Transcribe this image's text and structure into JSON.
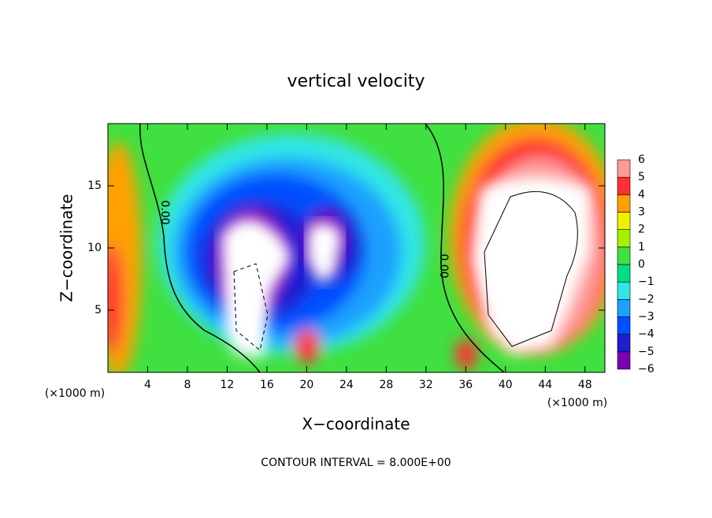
{
  "chart_data": {
    "type": "contour",
    "title": "vertical velocity",
    "xlabel": "X−coordinate",
    "ylabel": "Z−coordinate",
    "x_unit_label": "(×1000 m)",
    "footer": "CONTOUR INTERVAL = 8.000E+00",
    "contour_labels": [
      "0.00",
      "0.00"
    ],
    "xlim": [
      0,
      50
    ],
    "ylim": [
      0,
      20
    ],
    "xticks": [
      4,
      8,
      12,
      16,
      20,
      24,
      28,
      32,
      36,
      40,
      44,
      48
    ],
    "yticks": [
      5,
      10,
      15
    ],
    "colorbar": {
      "levels": [
        {
          "value": -6,
          "label": "−6"
        },
        {
          "value": -5,
          "label": "−5"
        },
        {
          "value": -4,
          "label": "−4"
        },
        {
          "value": -3,
          "label": "−3"
        },
        {
          "value": -2,
          "label": "−2"
        },
        {
          "value": -1,
          "label": "−1"
        },
        0,
        1,
        2,
        3,
        4,
        5,
        6
      ],
      "colors": [
        "#7a00b4",
        "#1e1ed2",
        "#0050ff",
        "#1ea0ff",
        "#30e6e6",
        "#00e080",
        "#40e040",
        "#a8f000",
        "#f0f000",
        "#ffa000",
        "#ff3030",
        "#ff9a9a"
      ]
    }
  }
}
